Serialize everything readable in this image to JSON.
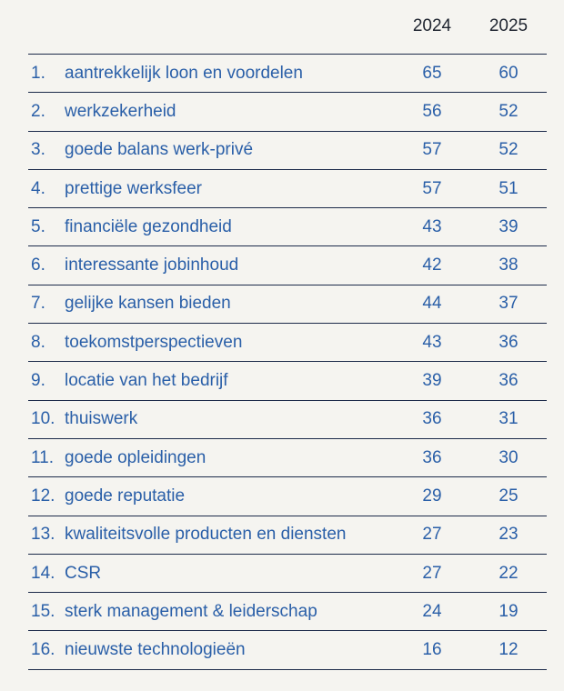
{
  "chart_data": {
    "type": "table",
    "columns": [
      "2024",
      "2025"
    ],
    "rows": [
      {
        "rank": "1.",
        "label": "aantrekkelijk loon en voordelen",
        "v2024": 65,
        "v2025": 60
      },
      {
        "rank": "2.",
        "label": "werkzekerheid",
        "v2024": 56,
        "v2025": 52
      },
      {
        "rank": "3.",
        "label": "goede balans werk-privé",
        "v2024": 57,
        "v2025": 52
      },
      {
        "rank": "4.",
        "label": "prettige werksfeer",
        "v2024": 57,
        "v2025": 51
      },
      {
        "rank": "5.",
        "label": "financiële gezondheid",
        "v2024": 43,
        "v2025": 39
      },
      {
        "rank": "6.",
        "label": "interessante jobinhoud",
        "v2024": 42,
        "v2025": 38
      },
      {
        "rank": "7.",
        "label": "gelijke kansen bieden",
        "v2024": 44,
        "v2025": 37
      },
      {
        "rank": "8.",
        "label": "toekomstperspectieven",
        "v2024": 43,
        "v2025": 36
      },
      {
        "rank": "9.",
        "label": "locatie van het bedrijf",
        "v2024": 39,
        "v2025": 36
      },
      {
        "rank": "10.",
        "label": "thuiswerk",
        "v2024": 36,
        "v2025": 31
      },
      {
        "rank": "11.",
        "label": "goede opleidingen",
        "v2024": 36,
        "v2025": 30
      },
      {
        "rank": "12.",
        "label": "goede reputatie",
        "v2024": 29,
        "v2025": 25
      },
      {
        "rank": "13.",
        "label": "kwaliteitsvolle producten en diensten",
        "v2024": 27,
        "v2025": 23
      },
      {
        "rank": "14.",
        "label": "CSR",
        "v2024": 27,
        "v2025": 22
      },
      {
        "rank": "15.",
        "label": "sterk management & leiderschap",
        "v2024": 24,
        "v2025": 19
      },
      {
        "rank": "16.",
        "label": "nieuwste technologieën",
        "v2024": 16,
        "v2025": 12
      }
    ]
  },
  "colors": {
    "background": "#f5f4f0",
    "text": "#2a5fa8",
    "header": "#1f2530",
    "rule": "#1c2a4a"
  }
}
